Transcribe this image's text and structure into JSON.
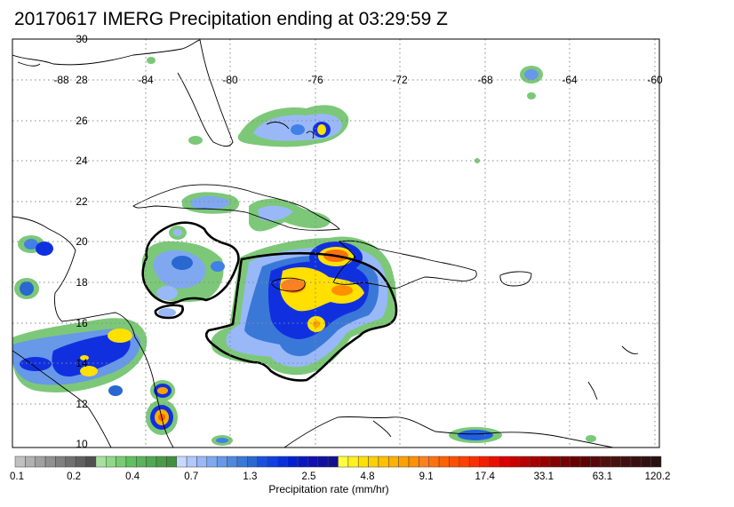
{
  "title": "20170617 IMERG Precipitation ending at 03:29:59 Z",
  "lon_labels": [
    "-88",
    "-84",
    "-80",
    "-76",
    "-72",
    "-68",
    "-64",
    "-60"
  ],
  "lat_labels": [
    "30",
    "28",
    "26",
    "24",
    "22",
    "20",
    "18",
    "16",
    "14",
    "12",
    "10"
  ],
  "colorbar": {
    "title": "Precipitation rate (mm/hr)",
    "tick_labels": [
      "0.1",
      "0.2",
      "0.4",
      "0.7",
      "1.3",
      "2.5",
      "4.8",
      "9.1",
      "17.4",
      "33.1",
      "63.1",
      "120.2"
    ],
    "colors": [
      "#c0c0c0",
      "#b0b0b0",
      "#a0a0a0",
      "#909090",
      "#808080",
      "#707070",
      "#606060",
      "#505050",
      "#a8e0a0",
      "#90d888",
      "#78cc70",
      "#60c060",
      "#5ab45a",
      "#50a850",
      "#489c48",
      "#409040",
      "#c8d8ff",
      "#b0c8ff",
      "#98b8f8",
      "#80a8f0",
      "#6898e8",
      "#5088e0",
      "#3a78d8",
      "#2868d0",
      "#1a50e0",
      "#1040e0",
      "#0830d8",
      "#0020d0",
      "#0818c0",
      "#1010b0",
      "#1010a0",
      "#101090",
      "#ffff40",
      "#fff020",
      "#ffe000",
      "#ffd000",
      "#ffc000",
      "#ffb000",
      "#ffa000",
      "#ff9000",
      "#ff8020",
      "#ff7010",
      "#ff6000",
      "#ff5000",
      "#ff4000",
      "#f83000",
      "#f02000",
      "#e81000",
      "#d80000",
      "#c80000",
      "#b80000",
      "#a80000",
      "#980000",
      "#880000",
      "#780000",
      "#680000",
      "#600000",
      "#580808",
      "#501010",
      "#481010",
      "#401010",
      "#381010",
      "#301010",
      "#281010"
    ]
  }
}
